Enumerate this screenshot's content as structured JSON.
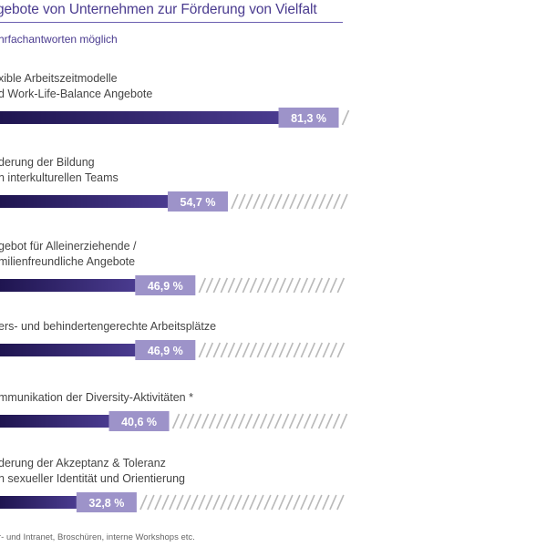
{
  "chart_data": {
    "type": "bar",
    "title": "gebote von Unternehmen zur Förderung von Vielfalt",
    "subtitle": "hrfachantworten möglich",
    "categories": [
      [
        "xible Arbeitszeitmodelle",
        "d Work-Life-Balance Angebote"
      ],
      [
        "derung der Bildung",
        "n interkulturellen Teams"
      ],
      [
        "gebot für Alleinerziehende /",
        "milienfreundliche Angebote"
      ],
      [
        "ers- und behindertengerechte Arbeitsplätze"
      ],
      [
        "mmunikation der Diversity-Aktivitäten *"
      ],
      [
        "derung der Akzeptanz & Toleranz",
        "n sexueller Identität und Orientierung"
      ]
    ],
    "values": [
      81.3,
      54.7,
      46.9,
      46.9,
      40.6,
      32.8
    ],
    "value_labels": [
      "81,3 %",
      "54,7 %",
      "46,9 %",
      "46,9 %",
      "40,6 %",
      "32,8 %"
    ],
    "ylim": [
      0,
      100
    ],
    "footnote": "r- und Intranet, Broschüren, interne Workshops etc.",
    "colors": {
      "bar_dark": "#2f1f6b",
      "bar_light": "#9d93c9",
      "hatch": "#b9b9b9",
      "accent": "#4a3b8f"
    }
  }
}
